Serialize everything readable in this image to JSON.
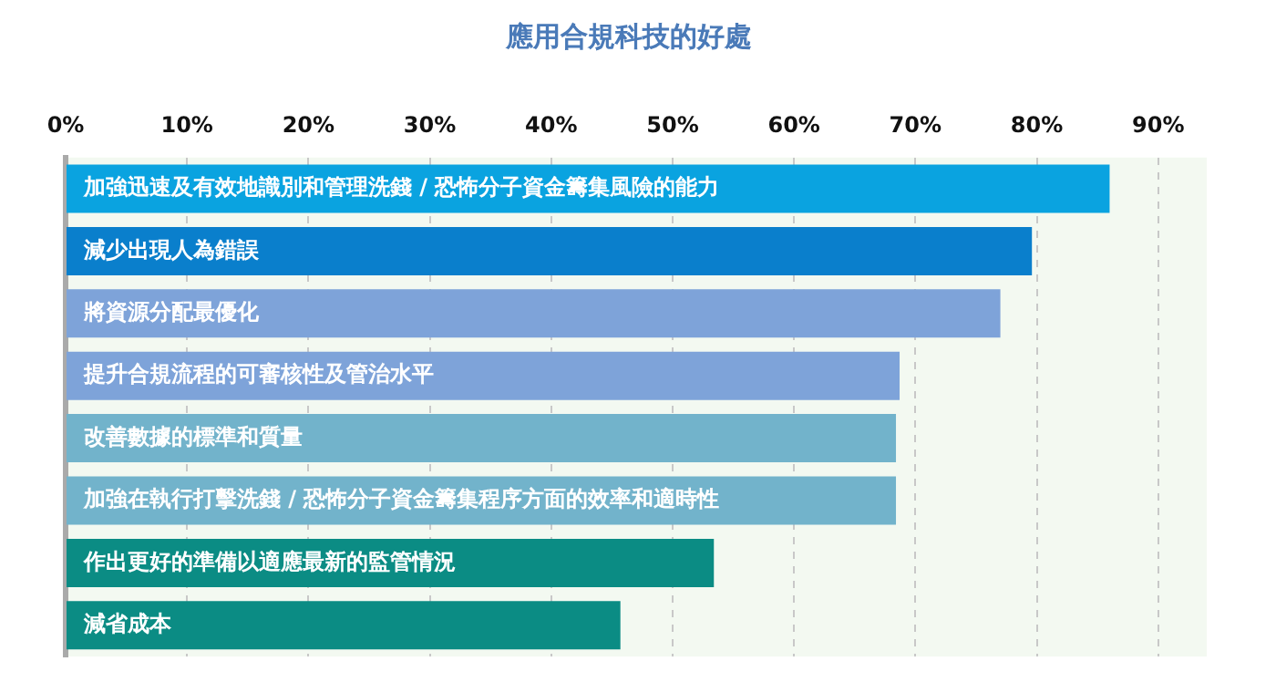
{
  "chart_data": {
    "type": "bar",
    "orientation": "horizontal",
    "title": "應用合規科技的好處",
    "categories": [
      "加強迅速及有效地識別和管理洗錢 / 恐怖分子資金籌集風險的能力",
      "減少出現人為錯誤",
      "將資源分配最優化",
      "提升合規流程的可審核性及管治水平",
      "改善數據的標準和質量",
      "加強在執行打擊洗錢 / 恐怖分子資金籌集程序方面的效率和適時性",
      "作出更好的準備以適應最新的監管情況",
      "減省成本"
    ],
    "values": [
      86,
      79.6,
      77,
      68.7,
      68.4,
      68.4,
      53.4,
      45.7
    ],
    "colors": [
      "#0aa3e0",
      "#0a7fcc",
      "#7ea3d9",
      "#7ea3d9",
      "#72b3cb",
      "#72b3cb",
      "#0b8c84",
      "#0b8c84"
    ],
    "xlim": [
      0,
      94
    ],
    "xticks": [
      {
        "value": 0,
        "label": "0%"
      },
      {
        "value": 10,
        "label": "10%"
      },
      {
        "value": 20,
        "label": "20%"
      },
      {
        "value": 30,
        "label": "30%"
      },
      {
        "value": 40,
        "label": "40%"
      },
      {
        "value": 50,
        "label": "50%"
      },
      {
        "value": 60,
        "label": "60%"
      },
      {
        "value": 70,
        "label": "70%"
      },
      {
        "value": 80,
        "label": "80%"
      },
      {
        "value": 90,
        "label": "90%"
      }
    ],
    "grid": "x",
    "legend": false
  }
}
